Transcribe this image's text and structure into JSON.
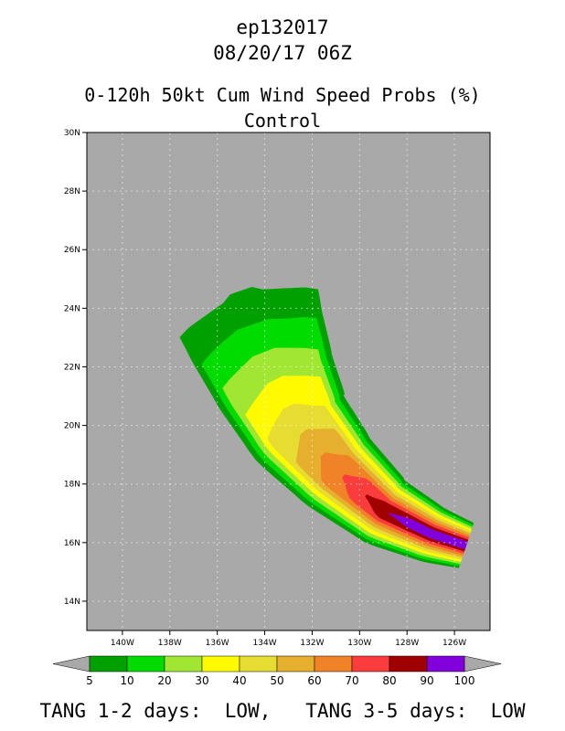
{
  "header": {
    "storm_id": "ep132017",
    "datetime": "08/20/17 06Z",
    "product": "0-120h 50kt Cum Wind Speed Probs (%)",
    "member": "Control"
  },
  "footer": {
    "text": "TANG 1-2 days:  LOW,   TANG 3-5 days:  LOW"
  },
  "colors": {
    "background": "#a9a9a9",
    "grid": "#ffffff",
    "levels": [
      "#00a000",
      "#00dc00",
      "#a0e632",
      "#fffa00",
      "#e6dc32",
      "#e6af2d",
      "#f08228",
      "#fa3c3c",
      "#a00000",
      "#8200dc"
    ]
  },
  "chart_data": {
    "type": "heatmap",
    "description_of_field": "cumulative wind speed probability contours",
    "x_axis": {
      "range_deg_west": [
        141.5,
        124.5
      ],
      "ticks": [
        "140W",
        "138W",
        "136W",
        "134W",
        "132W",
        "130W",
        "128W",
        "126W"
      ],
      "tick_values": [
        140,
        138,
        136,
        134,
        132,
        130,
        128,
        126
      ]
    },
    "y_axis": {
      "range_deg_north": [
        13,
        30
      ],
      "ticks": [
        "14N",
        "16N",
        "18N",
        "20N",
        "22N",
        "24N",
        "26N",
        "28N",
        "30N"
      ],
      "tick_values": [
        14,
        16,
        18,
        20,
        22,
        24,
        26,
        28,
        30
      ]
    },
    "colorbar": {
      "levels": [
        "5",
        "10",
        "20",
        "30",
        "40",
        "50",
        "60",
        "70",
        "80",
        "90",
        "100"
      ]
    },
    "track_centerline": [
      {
        "lon": 125.5,
        "lat": 15.9
      },
      {
        "lon": 127.0,
        "lat": 16.3
      },
      {
        "lon": 129.0,
        "lat": 17.1
      },
      {
        "lon": 131.0,
        "lat": 18.5
      },
      {
        "lon": 132.6,
        "lat": 20.0
      },
      {
        "lon": 133.6,
        "lat": 21.6
      },
      {
        "lon": 134.4,
        "lat": 23.2
      },
      {
        "lon": 135.0,
        "lat": 24.6
      }
    ],
    "grid": true
  }
}
